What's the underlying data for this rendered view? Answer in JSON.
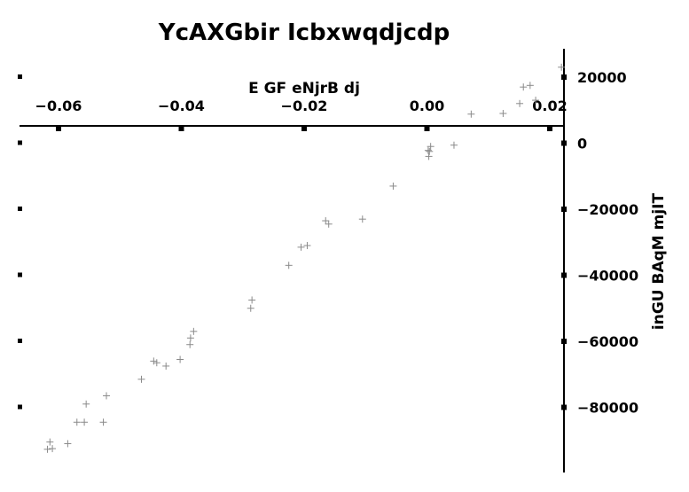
{
  "chart_data": {
    "type": "scatter",
    "title": "YcAXGbir Icbxwqdjcdp",
    "xlabel": "E GF eNjrB dj",
    "ylabel": "inGU BAqM mjIT",
    "xlim": [
      -0.0655,
      0.0225
    ],
    "ylim": [
      -100500,
      29000
    ],
    "x_ticks": [
      -0.06,
      -0.04,
      -0.02,
      0.0,
      0.02
    ],
    "x_tick_labels": [
      "−0.06",
      "−0.04",
      "−0.02",
      "0.00",
      "0.02"
    ],
    "y_ticks": [
      20000,
      0,
      -20000,
      -40000,
      -60000,
      -80000
    ],
    "y_tick_labels": [
      "20000",
      "0",
      "−20000",
      "−40000",
      "−60000",
      "−80000"
    ],
    "marker": "+",
    "marker_color": "#8a8a8a",
    "x": [
      0.0219,
      0.0168,
      0.0157,
      0.0177,
      0.0151,
      0.0124,
      0.0072,
      0.0044,
      0.0006,
      0.0002,
      0.0004,
      0.0003,
      -0.0055,
      -0.0105,
      -0.0165,
      -0.016,
      -0.0195,
      -0.0205,
      -0.0225,
      -0.0285,
      -0.0287,
      -0.038,
      -0.0385,
      -0.0386,
      -0.0402,
      -0.0425,
      -0.0445,
      -0.044,
      -0.0465,
      -0.0522,
      -0.0527,
      -0.0555,
      -0.057,
      -0.0558,
      -0.0585,
      -0.0614,
      -0.0618,
      -0.061
    ],
    "y": [
      23000,
      17500,
      17000,
      13000,
      12000,
      9000,
      8800,
      -600,
      -1000,
      -2200,
      -2500,
      -4000,
      -13000,
      -23000,
      -23500,
      -24500,
      -31000,
      -31500,
      -37000,
      -47500,
      -50000,
      -57000,
      -59000,
      -61000,
      -65500,
      -67500,
      -66000,
      -66500,
      -71500,
      -76500,
      -84500,
      -79000,
      -84500,
      -84500,
      -91000,
      -90500,
      -92700,
      -92500
    ]
  }
}
